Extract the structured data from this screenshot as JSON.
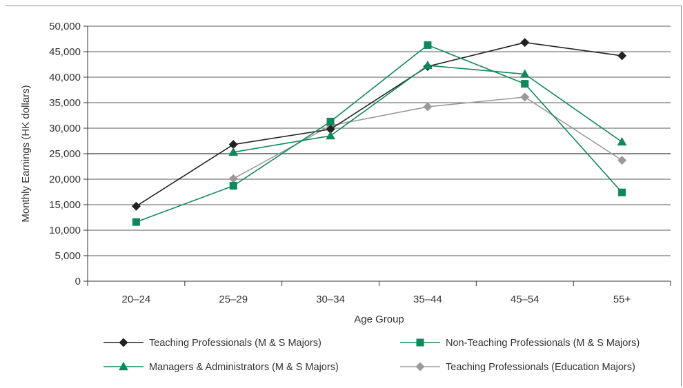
{
  "chart_data": {
    "type": "line",
    "title": "",
    "xlabel": "Age Group",
    "ylabel": "Monthly Earnings (HK dollars)",
    "categories": [
      "20–24",
      "25–29",
      "30–34",
      "35–44",
      "45–54",
      "55+"
    ],
    "ylim": [
      0,
      50000
    ],
    "yticks": [
      "0",
      "5,000",
      "10,000",
      "15,000",
      "20,000",
      "25,000",
      "30,000",
      "35,000",
      "40,000",
      "45,000",
      "50,000"
    ],
    "grid": true,
    "legend_position": "bottom",
    "series": [
      {
        "name": "Teaching Professionals (M & S Majors)",
        "color": "#222222",
        "marker": "diamond",
        "values": [
          14700,
          26800,
          29800,
          42100,
          46800,
          44200
        ]
      },
      {
        "name": "Non-Teaching Professionals (M & S Majors)",
        "color": "#11885a",
        "marker": "square",
        "values": [
          11600,
          18700,
          31300,
          46300,
          38700,
          17400
        ]
      },
      {
        "name": "Managers & Administrators (M & S Majors)",
        "color": "#11885a",
        "marker": "triangle",
        "values": [
          null,
          25300,
          28500,
          42300,
          40600,
          27300
        ]
      },
      {
        "name": "Teaching Professionals (Education Majors)",
        "color": "#9a9a9a",
        "marker": "diamond",
        "values": [
          null,
          20100,
          30500,
          34200,
          36100,
          23700
        ]
      }
    ]
  }
}
